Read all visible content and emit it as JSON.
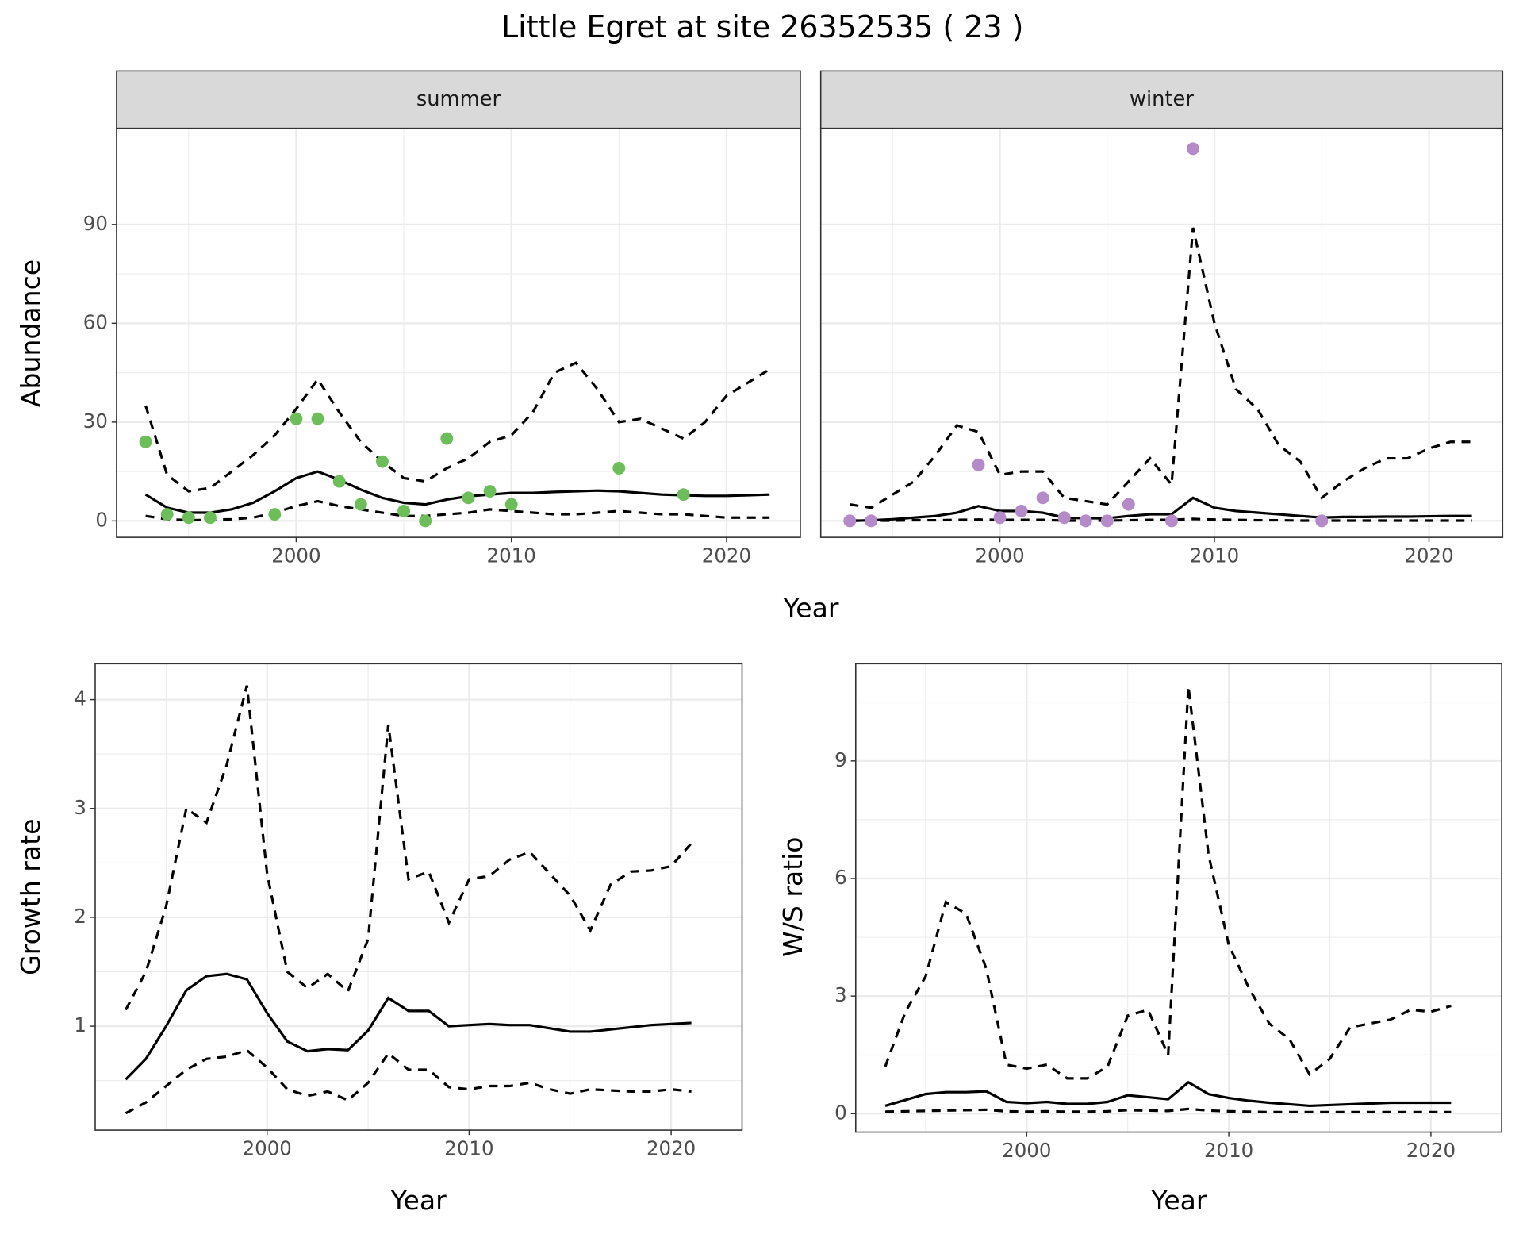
{
  "title": "Little Egret at site 26352535 ( 23 )",
  "chart_data": [
    {
      "type": "line",
      "title": "summer",
      "x_label": "Year",
      "y_label": "Abundance",
      "x": [
        1993,
        1994,
        1995,
        1996,
        1997,
        1998,
        1999,
        2000,
        2001,
        2002,
        2003,
        2004,
        2005,
        2006,
        2007,
        2008,
        2009,
        2010,
        2011,
        2012,
        2013,
        2014,
        2015,
        2016,
        2017,
        2018,
        2019,
        2020,
        2021,
        2022
      ],
      "xlim": [
        1991.65,
        2023.43
      ],
      "ylim": [
        -5,
        119.2
      ],
      "xticks": [
        2000,
        2010,
        2020
      ],
      "yticks": [
        0,
        30,
        60,
        90
      ],
      "grid": true,
      "series": [
        {
          "style": "solid",
          "color": "#000000",
          "values": [
            8,
            4,
            2.5,
            2.5,
            3.5,
            5.5,
            9,
            13,
            15,
            12.5,
            9.5,
            7,
            5.5,
            5,
            6.5,
            7.5,
            8,
            8.5,
            8.5,
            8.8,
            9,
            9.2,
            9,
            8.5,
            8,
            7.8,
            7.6,
            7.6,
            7.8,
            8
          ]
        },
        {
          "style": "dashed",
          "color": "#000000",
          "values": [
            35,
            14,
            9,
            10,
            15,
            20,
            26,
            34,
            43,
            33,
            24,
            18,
            13,
            12,
            16,
            19,
            24,
            26,
            33,
            45,
            48,
            40,
            30,
            31,
            28,
            25,
            30,
            38,
            42,
            46
          ]
        },
        {
          "style": "dashed",
          "color": "#000000",
          "values": [
            1.5,
            0.5,
            0.2,
            0.3,
            0.5,
            1,
            2.5,
            4.5,
            6,
            4.5,
            3.5,
            2.5,
            1.5,
            1.5,
            2,
            2.5,
            3.5,
            3,
            2.5,
            2,
            2,
            2.5,
            3,
            2.5,
            2,
            2,
            1.5,
            1,
            1,
            1
          ]
        },
        {
          "style": "points",
          "color": "#6dbe5a",
          "x": [
            1993,
            1994,
            1995,
            1996,
            1999,
            2000,
            2001,
            2002,
            2003,
            2004,
            2005,
            2006,
            2007,
            2008,
            2009,
            2010,
            2015,
            2018
          ],
          "values": [
            24,
            2,
            1,
            1,
            2,
            31,
            31,
            12,
            5,
            18,
            3,
            0,
            25,
            7,
            9,
            5,
            16,
            8
          ]
        }
      ]
    },
    {
      "type": "line",
      "title": "winter",
      "y_tick_labels": false,
      "x": [
        1993,
        1994,
        1995,
        1996,
        1997,
        1998,
        1999,
        2000,
        2001,
        2002,
        2003,
        2004,
        2005,
        2006,
        2007,
        2008,
        2009,
        2010,
        2011,
        2012,
        2013,
        2014,
        2015,
        2016,
        2017,
        2018,
        2019,
        2020,
        2021,
        2022
      ],
      "xlim": [
        1991.65,
        2023.43
      ],
      "ylim": [
        -5,
        119.2
      ],
      "xticks": [
        2000,
        2010,
        2020
      ],
      "yticks": [
        0,
        30,
        60,
        90
      ],
      "grid": true,
      "series": [
        {
          "style": "solid",
          "color": "#000000",
          "values": [
            0,
            0.2,
            0.5,
            1,
            1.5,
            2.5,
            4.5,
            3,
            3,
            2.5,
            1,
            0.8,
            0.8,
            1.5,
            2,
            2,
            7,
            4,
            3,
            2.5,
            2,
            1.5,
            1,
            1.2,
            1.2,
            1.3,
            1.3,
            1.4,
            1.5,
            1.5
          ]
        },
        {
          "style": "dashed",
          "color": "#000000",
          "values": [
            5,
            4,
            8,
            12,
            20,
            29,
            27,
            14,
            15,
            15,
            7,
            6,
            5,
            12,
            19,
            11,
            89,
            60,
            40,
            34,
            23,
            18,
            7,
            12,
            16,
            19,
            19,
            22,
            24,
            24
          ]
        },
        {
          "style": "dashed",
          "color": "#000000",
          "values": [
            0.1,
            0.1,
            0.1,
            0.2,
            0.2,
            0.3,
            0.4,
            0.3,
            0.3,
            0.3,
            0.1,
            0.1,
            0.1,
            0.2,
            0.3,
            0.3,
            0.6,
            0.4,
            0.3,
            0.2,
            0.2,
            0.1,
            0.1,
            0.1,
            0.1,
            0.1,
            0.1,
            0.1,
            0.1,
            0.1
          ]
        },
        {
          "style": "points",
          "color": "#b48ac8",
          "x": [
            1993,
            1994,
            1999,
            2000,
            2001,
            2002,
            2003,
            2004,
            2005,
            2006,
            2008,
            2009,
            2015
          ],
          "values": [
            0,
            0,
            17,
            1,
            3,
            7,
            1,
            0,
            0,
            5,
            0,
            113,
            0
          ]
        }
      ]
    },
    {
      "type": "line",
      "x_label": "Year",
      "y_label": "Growth rate",
      "x": [
        1993,
        1994,
        1995,
        1996,
        1997,
        1998,
        1999,
        2000,
        2001,
        2002,
        2003,
        2004,
        2005,
        2006,
        2007,
        2008,
        2009,
        2010,
        2011,
        2012,
        2013,
        2014,
        2015,
        2016,
        2017,
        2018,
        2019,
        2020,
        2021
      ],
      "xlim": [
        1991.49,
        2023.51
      ],
      "ylim": [
        0.045,
        4.33
      ],
      "xticks": [
        2000,
        2010,
        2020
      ],
      "yticks": [
        1,
        2,
        3,
        4
      ],
      "grid": true,
      "series": [
        {
          "style": "solid",
          "color": "#000000",
          "values": [
            0.51,
            0.7,
            1.0,
            1.33,
            1.46,
            1.48,
            1.43,
            1.12,
            0.86,
            0.77,
            0.79,
            0.78,
            0.96,
            1.26,
            1.14,
            1.14,
            1.0,
            1.01,
            1.02,
            1.01,
            1.01,
            0.98,
            0.95,
            0.95,
            0.97,
            0.99,
            1.01,
            1.02,
            1.03
          ]
        },
        {
          "style": "dashed",
          "color": "#000000",
          "values": [
            1.15,
            1.5,
            2.1,
            3.0,
            2.87,
            3.4,
            4.13,
            2.4,
            1.5,
            1.35,
            1.48,
            1.32,
            1.8,
            3.77,
            2.35,
            2.42,
            1.95,
            2.35,
            2.38,
            2.53,
            2.6,
            2.4,
            2.2,
            1.88,
            2.3,
            2.42,
            2.43,
            2.47,
            2.68
          ]
        },
        {
          "style": "dashed",
          "color": "#000000",
          "values": [
            0.2,
            0.3,
            0.45,
            0.6,
            0.7,
            0.72,
            0.78,
            0.62,
            0.42,
            0.36,
            0.4,
            0.32,
            0.48,
            0.75,
            0.6,
            0.6,
            0.44,
            0.42,
            0.45,
            0.45,
            0.48,
            0.42,
            0.38,
            0.42,
            0.41,
            0.4,
            0.4,
            0.42,
            0.4
          ]
        }
      ]
    },
    {
      "type": "line",
      "x_label": "Year",
      "y_label": "W/S ratio",
      "x": [
        1993,
        1994,
        1995,
        1996,
        1997,
        1998,
        1999,
        2000,
        2001,
        2002,
        2003,
        2004,
        2005,
        2006,
        2007,
        2008,
        2009,
        2010,
        2011,
        2012,
        2013,
        2014,
        2015,
        2016,
        2017,
        2018,
        2019,
        2020,
        2021
      ],
      "xlim": [
        1991.54,
        2023.5
      ],
      "ylim": [
        -0.47,
        11.48
      ],
      "xticks": [
        2000,
        2010,
        2020
      ],
      "yticks": [
        0,
        3,
        6,
        9
      ],
      "grid": true,
      "series": [
        {
          "style": "solid",
          "color": "#000000",
          "values": [
            0.2,
            0.35,
            0.5,
            0.55,
            0.55,
            0.57,
            0.3,
            0.27,
            0.3,
            0.25,
            0.25,
            0.3,
            0.47,
            0.42,
            0.37,
            0.8,
            0.5,
            0.4,
            0.33,
            0.28,
            0.24,
            0.2,
            0.22,
            0.24,
            0.26,
            0.28,
            0.28,
            0.28,
            0.28
          ]
        },
        {
          "style": "dashed",
          "color": "#000000",
          "values": [
            1.2,
            2.6,
            3.5,
            5.4,
            5.1,
            3.7,
            1.25,
            1.15,
            1.25,
            0.9,
            0.9,
            1.2,
            2.5,
            2.65,
            1.5,
            10.9,
            6.6,
            4.3,
            3.2,
            2.3,
            1.9,
            1.0,
            1.4,
            2.2,
            2.3,
            2.4,
            2.65,
            2.6,
            2.75
          ]
        },
        {
          "style": "dashed",
          "color": "#000000",
          "values": [
            0.05,
            0.06,
            0.07,
            0.08,
            0.09,
            0.1,
            0.06,
            0.05,
            0.06,
            0.05,
            0.05,
            0.06,
            0.09,
            0.08,
            0.07,
            0.12,
            0.08,
            0.06,
            0.05,
            0.04,
            0.04,
            0.04,
            0.04,
            0.04,
            0.04,
            0.04,
            0.04,
            0.04,
            0.04
          ]
        }
      ]
    }
  ]
}
